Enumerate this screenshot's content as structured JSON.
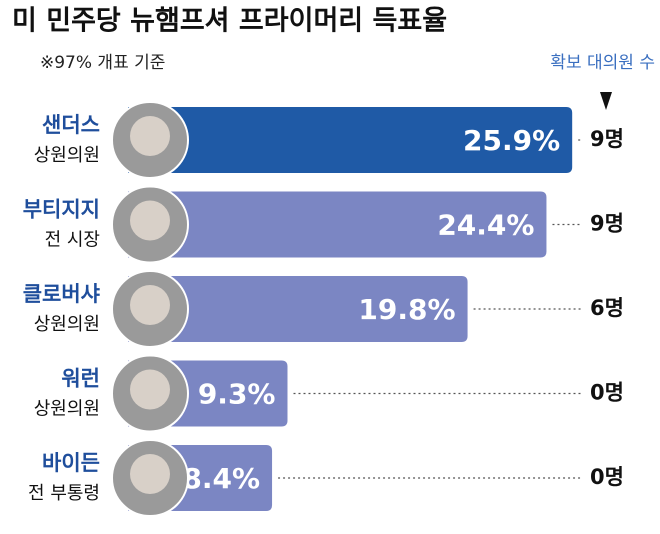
{
  "chart_data": {
    "type": "bar",
    "title": "미 민주당 뉴햄프셔 프라이머리 득표율",
    "subtitle": "※97% 개표 기준",
    "delegate_header": "확보 대의원 수",
    "categories": [
      "샌더스",
      "부티지지",
      "클로버샤",
      "워런",
      "바이든"
    ],
    "roles": [
      "상원의원",
      "전 시장",
      "상원의원",
      "상원의원",
      "전 부통령"
    ],
    "values": [
      25.9,
      24.4,
      19.8,
      9.3,
      8.4
    ],
    "value_labels": [
      "25.9%",
      "24.4%",
      "19.8%",
      "9.3%",
      "8.4%"
    ],
    "colors": [
      "#1f5aa6",
      "#7b86c3",
      "#7b86c3",
      "#7b86c3",
      "#7b86c3"
    ],
    "delegates": [
      "9명",
      "9명",
      "6명",
      "0명",
      "0명"
    ]
  }
}
